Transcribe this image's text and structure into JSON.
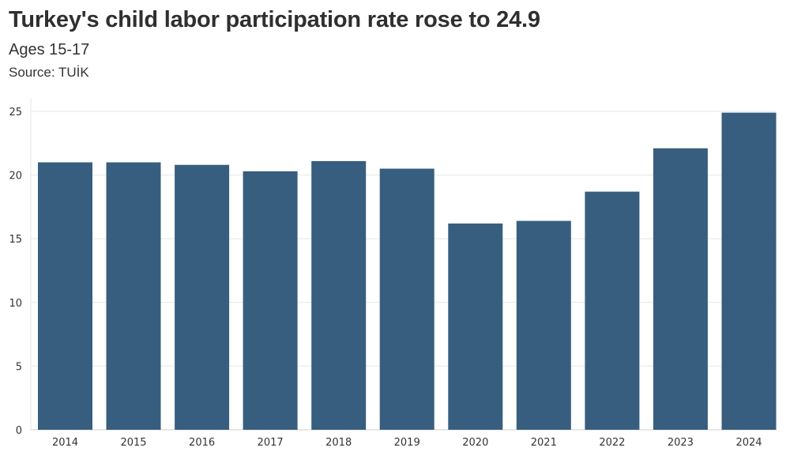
{
  "header": {
    "title": "Turkey's child labor participation rate rose to 24.9",
    "subtitle": "Ages 15-17",
    "source": "Source: TUİK"
  },
  "colors": {
    "bar": "#375e7f",
    "grid": "#e6e6e6",
    "text": "#333333"
  },
  "chart_data": {
    "type": "bar",
    "categories": [
      "2014",
      "2015",
      "2016",
      "2017",
      "2018",
      "2019",
      "2020",
      "2021",
      "2022",
      "2023",
      "2024"
    ],
    "values": [
      21.0,
      21.0,
      20.8,
      20.3,
      21.1,
      20.5,
      16.2,
      16.4,
      18.7,
      22.1,
      24.9
    ],
    "ylim": [
      0,
      25
    ],
    "yticks": [
      0,
      5,
      10,
      15,
      20,
      25
    ],
    "grid": true
  }
}
